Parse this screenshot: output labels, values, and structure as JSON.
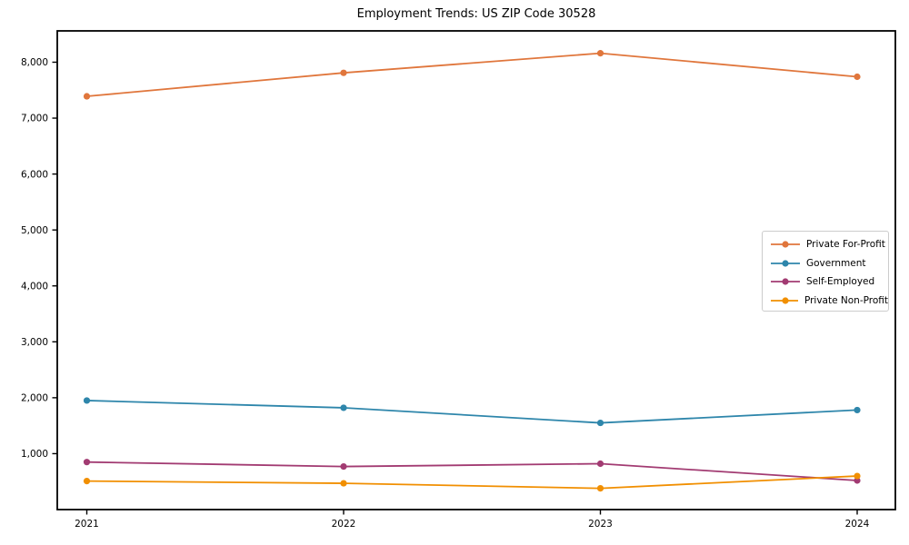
{
  "title": "Employment Trends: US ZIP Code 30528",
  "chart_data": {
    "type": "line",
    "x": [
      2021,
      2022,
      2023,
      2024
    ],
    "x_labels": [
      "2021",
      "2022",
      "2023",
      "2024"
    ],
    "series": [
      {
        "name": "Private For-Profit",
        "color": "#E0763C",
        "values": [
          7390,
          7810,
          8160,
          7740
        ]
      },
      {
        "name": "Government",
        "color": "#2E86AB",
        "values": [
          1950,
          1820,
          1550,
          1780
        ]
      },
      {
        "name": "Self-Employed",
        "color": "#A23B72",
        "values": [
          850,
          770,
          820,
          520
        ]
      },
      {
        "name": "Private Non-Profit",
        "color": "#F18F01",
        "values": [
          510,
          470,
          380,
          600
        ]
      }
    ],
    "y_ticks": [
      {
        "value": 1000,
        "label": "1,000"
      },
      {
        "value": 2000,
        "label": "2,000"
      },
      {
        "value": 3000,
        "label": "3,000"
      },
      {
        "value": 4000,
        "label": "4,000"
      },
      {
        "value": 5000,
        "label": "5,000"
      },
      {
        "value": 6000,
        "label": "6,000"
      },
      {
        "value": 7000,
        "label": "7,000"
      },
      {
        "value": 8000,
        "label": "8,000"
      }
    ],
    "ylim": [
      0,
      8560
    ],
    "grid": false,
    "legend_position": "center right",
    "frame_color": "#000000"
  }
}
